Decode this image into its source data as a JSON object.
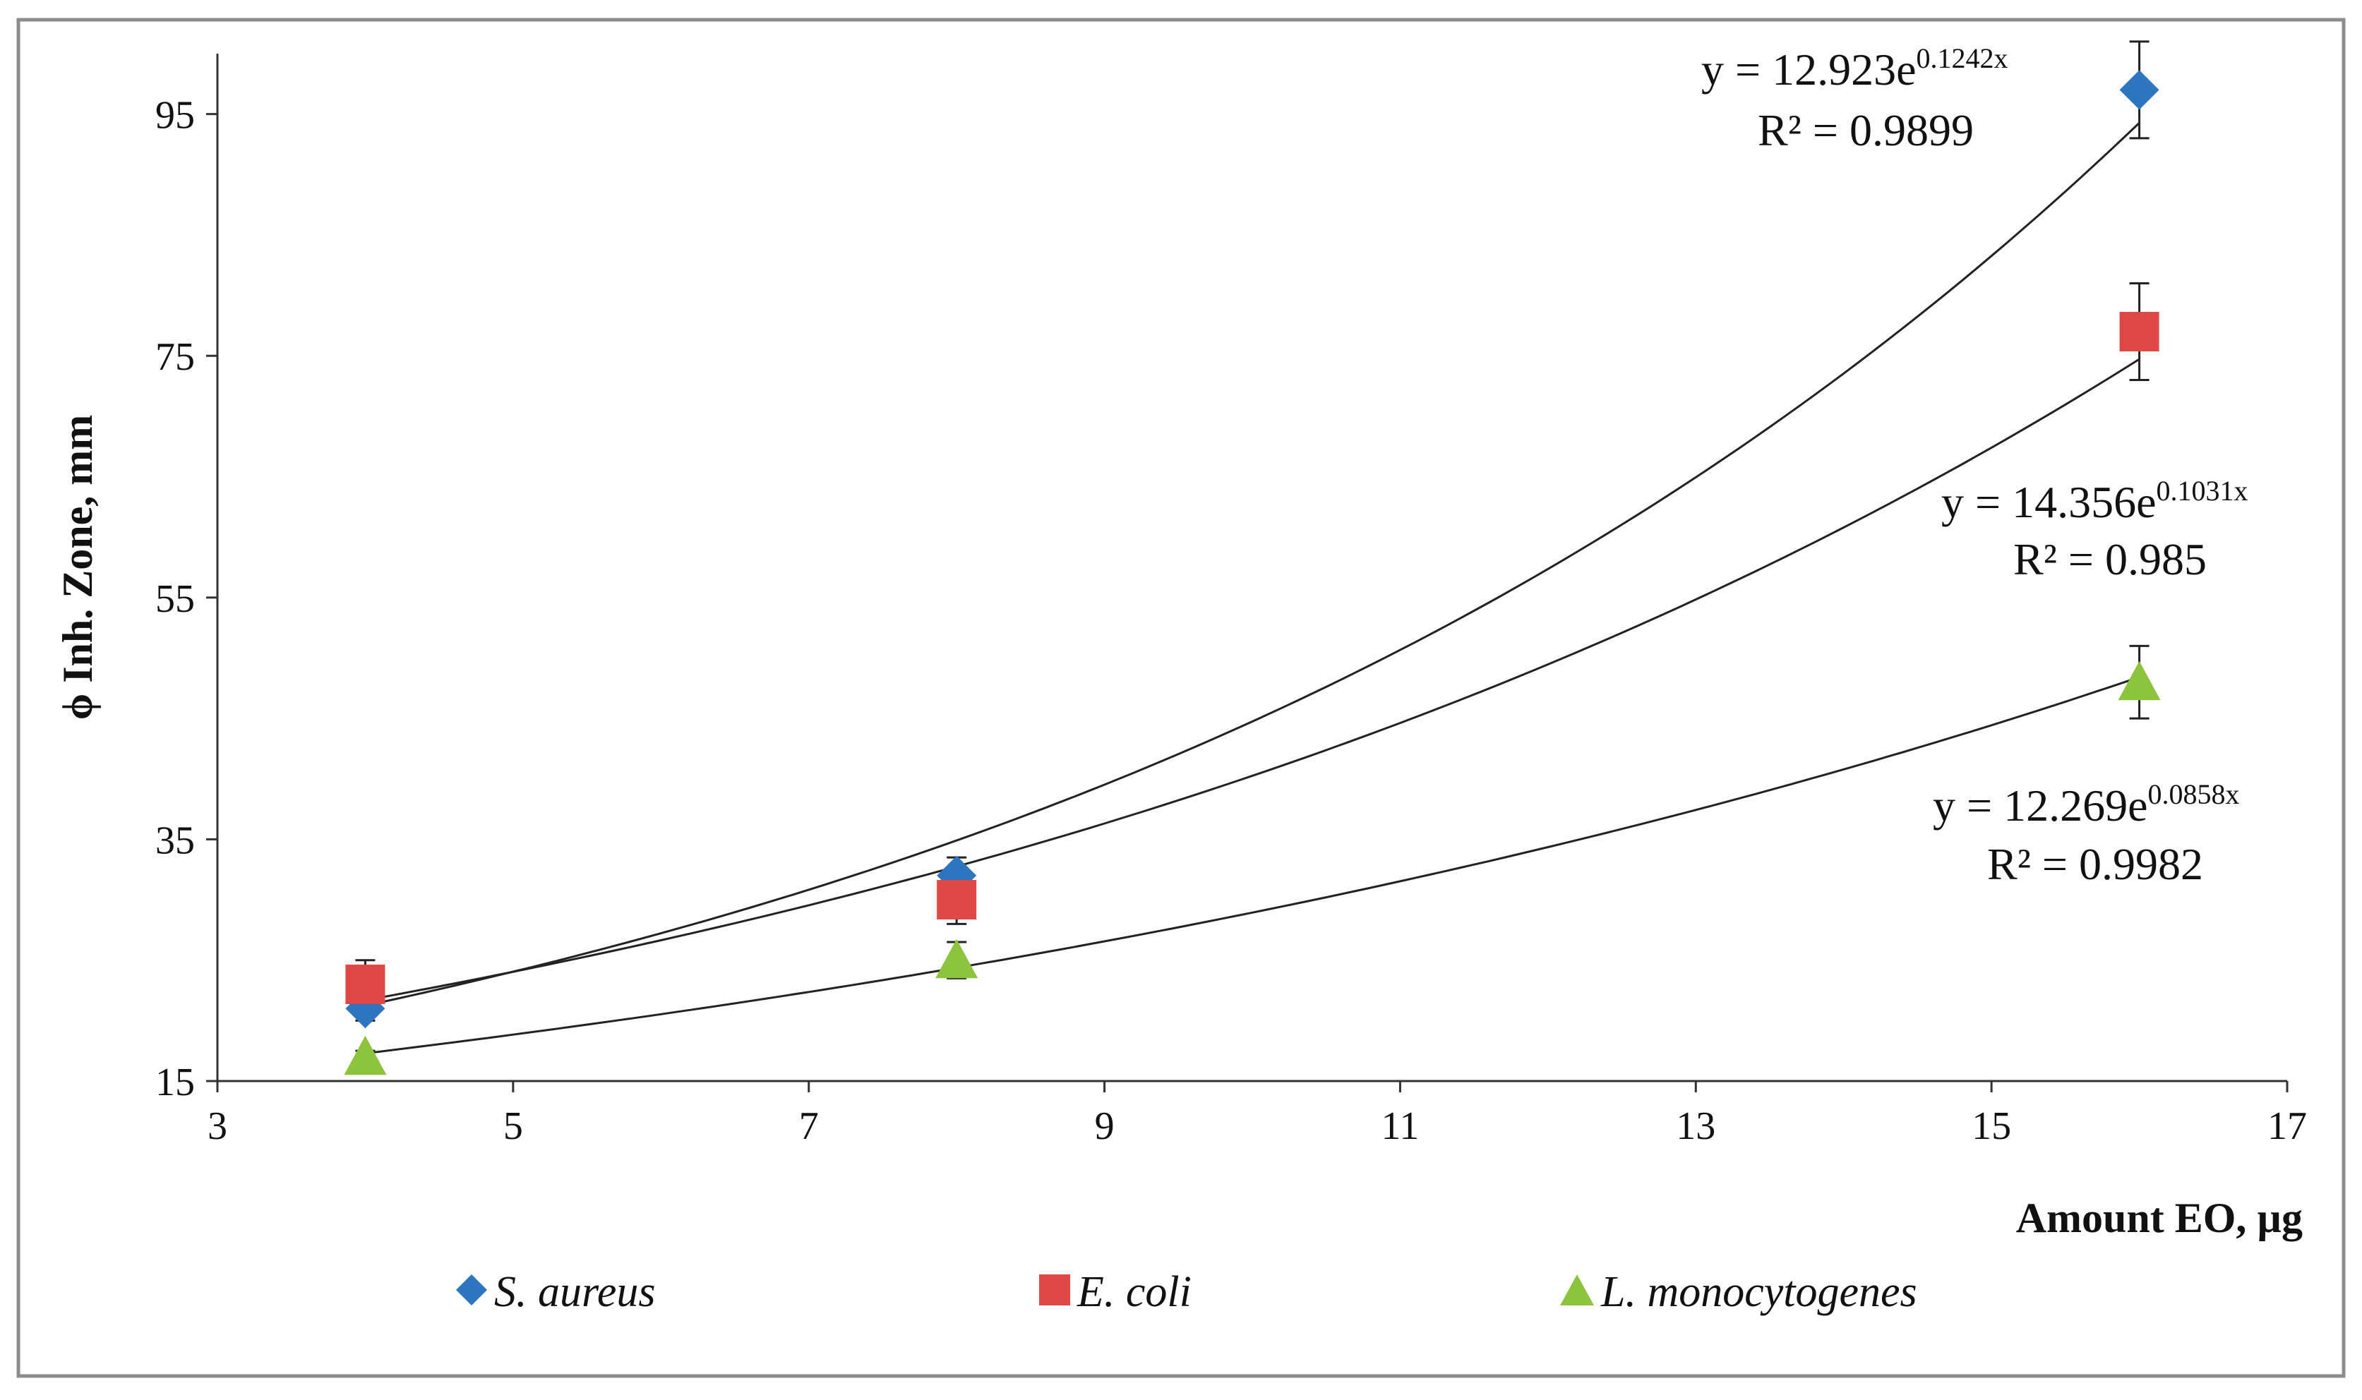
{
  "chart_data": {
    "type": "scatter",
    "title": "",
    "xlabel": "Amount EO,  µg",
    "ylabel": "ϕ Inh. Zone, mm",
    "xlim": [
      3,
      17
    ],
    "ylim": [
      15,
      100
    ],
    "x_ticks": [
      3,
      5,
      7,
      9,
      11,
      13,
      15,
      17
    ],
    "y_ticks": [
      15,
      35,
      55,
      75,
      95
    ],
    "x_tick_labels": [
      "3",
      "5",
      "7",
      "9",
      "11",
      "13",
      "15",
      "17"
    ],
    "y_tick_labels": [
      "15",
      "35",
      "55",
      "75",
      "95"
    ],
    "grid": false,
    "legend_position": "bottom",
    "series": [
      {
        "name": "S. aureus",
        "marker": "diamond",
        "color": "#2E75C0",
        "x": [
          4,
          8,
          16
        ],
        "y": [
          21,
          32,
          97
        ],
        "error": [
          1,
          1.5,
          4
        ],
        "trendline": {
          "type": "exponential",
          "a": 12.923,
          "b": 0.1242,
          "equation_prefix": "y = 12.923e",
          "equation_exponent": "0.1242x",
          "r2_label": "R² = 0.9899"
        }
      },
      {
        "name": "E. coli",
        "marker": "square",
        "color": "#E04747",
        "x": [
          4,
          8,
          16
        ],
        "y": [
          23,
          30,
          77
        ],
        "error": [
          2,
          2,
          4
        ],
        "trendline": {
          "type": "exponential",
          "a": 14.356,
          "b": 0.1031,
          "equation_prefix": "y = 14.356e",
          "equation_exponent": "0.1031x",
          "r2_label": "R² = 0.985"
        }
      },
      {
        "name": "L. monocytogenes",
        "marker": "triangle",
        "color": "#8DC43E",
        "x": [
          4,
          8,
          16
        ],
        "y": [
          17,
          25,
          48
        ],
        "error": [
          0.5,
          1.5,
          3
        ],
        "trendline": {
          "type": "exponential",
          "a": 12.269,
          "b": 0.0858,
          "equation_prefix": "y = 12.269e",
          "equation_exponent": "0.0858x",
          "r2_label": "R² = 0.9982"
        }
      }
    ]
  }
}
